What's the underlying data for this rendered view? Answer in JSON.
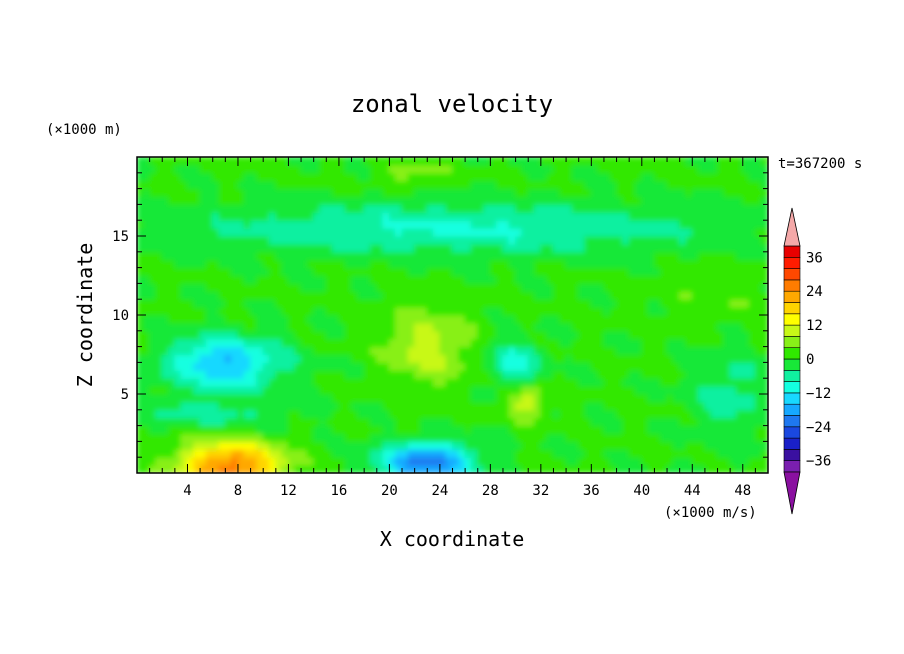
{
  "chart_data": {
    "type": "heatmap",
    "title": "zonal velocity",
    "xlabel": "X coordinate",
    "ylabel": "Z coordinate",
    "x_unit": "(×1000 m/s)",
    "y_unit": "(×1000 m)",
    "time_label": "t=367200 s",
    "xlim": [
      0,
      50
    ],
    "ylim": [
      0,
      20
    ],
    "x_ticks": [
      "4",
      "8",
      "12",
      "16",
      "20",
      "24",
      "28",
      "32",
      "36",
      "40",
      "44",
      "48"
    ],
    "y_ticks": [
      "5",
      "10",
      "15"
    ],
    "colorbar": {
      "min": -40,
      "max": 40,
      "step": 4,
      "tick_labels": [
        "36",
        "24",
        "12",
        "0",
        "-12",
        "-24",
        "-36"
      ],
      "colors": [
        "#7a1fb0",
        "#3a10a0",
        "#1a20c8",
        "#1a48e0",
        "#1e78f0",
        "#16a8ff",
        "#18d8ff",
        "#14ffe0",
        "#10f0a0",
        "#18e838",
        "#30e800",
        "#88f018",
        "#c8f818",
        "#ffff00",
        "#ffd400",
        "#ffa800",
        "#ff7c00",
        "#ff4800",
        "#ff1c00",
        "#e80000"
      ],
      "over_color": "#f4a8a8",
      "under_color": "#8a10a0"
    },
    "features": [
      {
        "x": 7.5,
        "z": 0.5,
        "sx": 4.0,
        "sz": 1.5,
        "value": 26
      },
      {
        "x": 7,
        "z": 7,
        "sx": 4.5,
        "sz": 1.6,
        "value": -17
      },
      {
        "x": 23,
        "z": 8,
        "sx": 3.5,
        "sz": 2.6,
        "value": 9
      },
      {
        "x": 23,
        "z": 0.7,
        "sx": 3.5,
        "sz": 1.2,
        "value": -24
      },
      {
        "x": 31,
        "z": 4.5,
        "sx": 1.3,
        "sz": 1.0,
        "value": 12
      },
      {
        "x": 30,
        "z": 7,
        "sx": 2.0,
        "sz": 1.3,
        "value": -11
      },
      {
        "x": 25,
        "z": 15.5,
        "sx": 20,
        "sz": 1.6,
        "value": -9
      },
      {
        "x": 47,
        "z": 5,
        "sx": 3.0,
        "sz": 3.0,
        "value": -6
      },
      {
        "x": 46,
        "z": 11,
        "sx": 4.0,
        "sz": 2.0,
        "value": 3
      },
      {
        "x": 22,
        "z": 19,
        "sx": 3.0,
        "sz": 0.8,
        "value": 5
      },
      {
        "x": 6,
        "z": 3.8,
        "sx": 6.0,
        "sz": 1.0,
        "value": -6
      }
    ]
  }
}
